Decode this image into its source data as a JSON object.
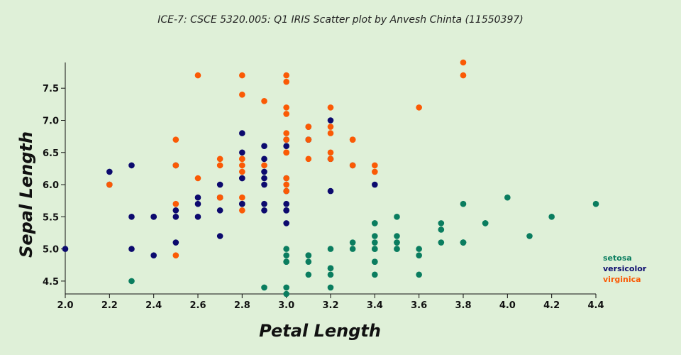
{
  "chart_data": {
    "type": "scatter",
    "title": "ICE-7: CSCE 5320.005: Q1 IRIS Scatter plot by Anvesh Chinta (11550397)",
    "xlabel": "Petal Length",
    "ylabel": "Sepal Length",
    "xlim": [
      2.0,
      4.4
    ],
    "ylim": [
      4.3,
      7.9
    ],
    "xticks": [
      "2.0",
      "2.2",
      "2.4",
      "2.6",
      "2.8",
      "3.0",
      "3.2",
      "3.4",
      "3.6",
      "3.8",
      "4.0",
      "4.2",
      "4.4"
    ],
    "yticks": [
      "4.5",
      "5.0",
      "5.5",
      "6.0",
      "6.5",
      "7.0",
      "7.5"
    ],
    "legend_position": "right",
    "grid": false,
    "series": [
      {
        "name": "setosa",
        "color": "#0a7d5f",
        "points": [
          [
            3.5,
            5.1
          ],
          [
            3.0,
            4.9
          ],
          [
            3.2,
            4.7
          ],
          [
            3.1,
            4.6
          ],
          [
            3.6,
            5.0
          ],
          [
            3.9,
            5.4
          ],
          [
            3.4,
            4.6
          ],
          [
            3.4,
            5.0
          ],
          [
            2.9,
            4.4
          ],
          [
            3.1,
            4.9
          ],
          [
            3.7,
            5.4
          ],
          [
            3.4,
            4.8
          ],
          [
            3.0,
            4.8
          ],
          [
            3.0,
            4.3
          ],
          [
            4.0,
            5.8
          ],
          [
            4.4,
            5.7
          ],
          [
            3.9,
            5.4
          ],
          [
            3.5,
            5.1
          ],
          [
            3.8,
            5.7
          ],
          [
            3.8,
            5.1
          ],
          [
            3.4,
            5.4
          ],
          [
            3.7,
            5.1
          ],
          [
            3.6,
            4.6
          ],
          [
            3.3,
            5.1
          ],
          [
            3.4,
            4.8
          ],
          [
            3.0,
            5.0
          ],
          [
            3.4,
            5.0
          ],
          [
            3.5,
            5.2
          ],
          [
            3.4,
            5.2
          ],
          [
            3.2,
            4.7
          ],
          [
            3.1,
            4.8
          ],
          [
            3.4,
            5.4
          ],
          [
            4.1,
            5.2
          ],
          [
            4.2,
            5.5
          ],
          [
            3.1,
            4.9
          ],
          [
            3.2,
            5.0
          ],
          [
            3.5,
            5.5
          ],
          [
            3.6,
            4.9
          ],
          [
            3.0,
            4.4
          ],
          [
            3.4,
            5.1
          ],
          [
            3.5,
            5.0
          ],
          [
            2.3,
            4.5
          ],
          [
            3.2,
            4.4
          ],
          [
            3.5,
            5.0
          ],
          [
            3.8,
            5.1
          ],
          [
            3.0,
            4.8
          ],
          [
            3.8,
            5.1
          ],
          [
            3.2,
            4.6
          ],
          [
            3.7,
            5.3
          ],
          [
            3.3,
            5.0
          ]
        ]
      },
      {
        "name": "versicolor",
        "color": "#0c0a6e",
        "points": [
          [
            3.2,
            7.0
          ],
          [
            3.2,
            6.4
          ],
          [
            3.1,
            6.9
          ],
          [
            2.3,
            5.5
          ],
          [
            2.8,
            6.5
          ],
          [
            2.8,
            5.7
          ],
          [
            3.3,
            6.3
          ],
          [
            2.4,
            4.9
          ],
          [
            2.9,
            6.6
          ],
          [
            2.7,
            5.2
          ],
          [
            2.0,
            5.0
          ],
          [
            3.0,
            5.9
          ],
          [
            2.2,
            6.0
          ],
          [
            2.9,
            6.1
          ],
          [
            2.9,
            5.6
          ],
          [
            3.1,
            6.7
          ],
          [
            3.0,
            5.6
          ],
          [
            2.7,
            5.8
          ],
          [
            2.2,
            6.2
          ],
          [
            2.5,
            5.6
          ],
          [
            3.2,
            5.9
          ],
          [
            2.8,
            6.1
          ],
          [
            2.5,
            6.3
          ],
          [
            2.8,
            6.1
          ],
          [
            2.9,
            6.4
          ],
          [
            3.0,
            6.6
          ],
          [
            2.8,
            6.8
          ],
          [
            3.0,
            6.7
          ],
          [
            2.9,
            6.0
          ],
          [
            2.6,
            5.7
          ],
          [
            2.4,
            5.5
          ],
          [
            2.4,
            5.5
          ],
          [
            2.7,
            5.8
          ],
          [
            2.7,
            6.0
          ],
          [
            3.0,
            5.4
          ],
          [
            3.4,
            6.0
          ],
          [
            3.1,
            6.7
          ],
          [
            2.3,
            6.3
          ],
          [
            3.0,
            5.6
          ],
          [
            2.5,
            5.5
          ],
          [
            2.6,
            5.5
          ],
          [
            3.0,
            6.1
          ],
          [
            2.6,
            5.8
          ],
          [
            2.3,
            5.0
          ],
          [
            2.7,
            5.6
          ],
          [
            3.0,
            5.7
          ],
          [
            2.9,
            5.7
          ],
          [
            2.9,
            6.2
          ],
          [
            2.5,
            5.1
          ],
          [
            2.8,
            5.7
          ]
        ]
      },
      {
        "name": "virginica",
        "color": "#fa5a05",
        "points": [
          [
            3.3,
            6.3
          ],
          [
            2.7,
            5.8
          ],
          [
            3.0,
            7.1
          ],
          [
            2.9,
            6.3
          ],
          [
            3.0,
            6.5
          ],
          [
            3.0,
            7.6
          ],
          [
            2.5,
            4.9
          ],
          [
            2.9,
            7.3
          ],
          [
            2.5,
            6.7
          ],
          [
            3.6,
            7.2
          ],
          [
            3.2,
            6.5
          ],
          [
            2.7,
            6.4
          ],
          [
            3.0,
            6.8
          ],
          [
            2.5,
            5.7
          ],
          [
            2.8,
            5.8
          ],
          [
            3.2,
            6.4
          ],
          [
            3.0,
            6.5
          ],
          [
            3.8,
            7.7
          ],
          [
            2.6,
            7.7
          ],
          [
            2.2,
            6.0
          ],
          [
            3.2,
            6.9
          ],
          [
            2.8,
            5.6
          ],
          [
            2.8,
            7.7
          ],
          [
            2.7,
            6.3
          ],
          [
            3.3,
            6.7
          ],
          [
            3.2,
            7.2
          ],
          [
            2.8,
            6.2
          ],
          [
            3.0,
            6.1
          ],
          [
            2.8,
            6.4
          ],
          [
            3.0,
            7.2
          ],
          [
            2.8,
            7.4
          ],
          [
            3.8,
            7.9
          ],
          [
            2.8,
            6.4
          ],
          [
            2.8,
            6.3
          ],
          [
            2.6,
            6.1
          ],
          [
            3.0,
            7.7
          ],
          [
            3.4,
            6.3
          ],
          [
            3.1,
            6.4
          ],
          [
            3.0,
            6.0
          ],
          [
            3.1,
            6.9
          ],
          [
            3.1,
            6.7
          ],
          [
            3.1,
            6.9
          ],
          [
            2.7,
            5.8
          ],
          [
            3.2,
            6.8
          ],
          [
            3.3,
            6.7
          ],
          [
            3.0,
            6.7
          ],
          [
            2.5,
            6.3
          ],
          [
            3.0,
            6.5
          ],
          [
            3.4,
            6.2
          ],
          [
            3.0,
            5.9
          ]
        ]
      }
    ]
  }
}
